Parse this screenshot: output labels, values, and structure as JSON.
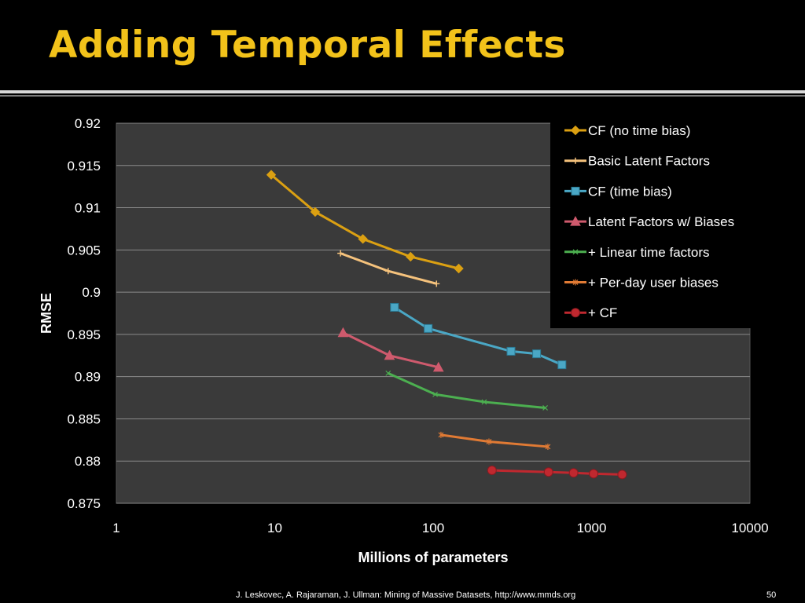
{
  "slide": {
    "title": "Adding Temporal Effects",
    "footer": "J. Leskovec, A. Rajaraman, J. Ullman: Mining of Massive Datasets, http://www.mmds.org",
    "page_number": "50"
  },
  "chart_data": {
    "type": "line",
    "xlabel": "Millions of parameters",
    "ylabel": "RMSE",
    "x_scale": "log",
    "xlim": [
      1,
      10000
    ],
    "ylim": [
      0.875,
      0.92
    ],
    "x_ticks": [
      "1",
      "10",
      "100",
      "1000",
      "10000"
    ],
    "y_ticks": [
      "0.875",
      "0.88",
      "0.885",
      "0.89",
      "0.895",
      "0.9",
      "0.905",
      "0.91",
      "0.915",
      "0.92"
    ],
    "legend_position": "top-right",
    "grid": true,
    "background": "#3a3a3a",
    "series": [
      {
        "name": "CF (no time bias)",
        "color": "#dba012",
        "marker": "diamond",
        "points": [
          [
            9.5,
            0.9139
          ],
          [
            18,
            0.9095
          ],
          [
            36,
            0.9063
          ],
          [
            72,
            0.9042
          ],
          [
            145,
            0.9028
          ]
        ]
      },
      {
        "name": "Basic Latent Factors",
        "color": "#f5c27c",
        "marker": "plus",
        "points": [
          [
            26,
            0.9046
          ],
          [
            52,
            0.9025
          ],
          [
            105,
            0.901
          ]
        ]
      },
      {
        "name": "CF (time bias)",
        "color": "#4aa7c5",
        "marker": "square",
        "points": [
          [
            57,
            0.8982
          ],
          [
            93,
            0.8957
          ],
          [
            310,
            0.893
          ],
          [
            450,
            0.8927
          ],
          [
            650,
            0.8914
          ]
        ]
      },
      {
        "name": "Latent Factors w/ Biases",
        "color": "#cf5a6d",
        "marker": "triangle",
        "points": [
          [
            27,
            0.8952
          ],
          [
            53,
            0.8925
          ],
          [
            108,
            0.8911
          ]
        ]
      },
      {
        "name": "+ Linear time factors",
        "color": "#4caf50",
        "marker": "x",
        "points": [
          [
            52,
            0.8904
          ],
          [
            103,
            0.8879
          ],
          [
            210,
            0.887
          ],
          [
            510,
            0.8863
          ]
        ]
      },
      {
        "name": "+ Per-day user biases",
        "color": "#e07a34",
        "marker": "star",
        "points": [
          [
            112,
            0.8831
          ],
          [
            225,
            0.8823
          ],
          [
            530,
            0.8817
          ]
        ]
      },
      {
        "name": "+ CF",
        "color": "#c0282f",
        "marker": "circle",
        "points": [
          [
            235,
            0.8789
          ],
          [
            535,
            0.8787
          ],
          [
            770,
            0.8786
          ],
          [
            1030,
            0.8785
          ],
          [
            1560,
            0.8784
          ]
        ]
      }
    ]
  }
}
